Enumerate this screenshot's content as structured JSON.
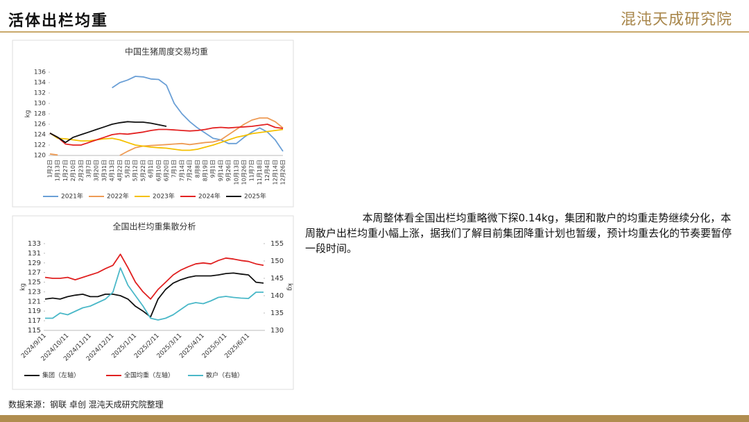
{
  "header": {
    "title": "活体出栏均重",
    "logo": "混沌天成研究院"
  },
  "body": {
    "text": "本周整体看全国出栏均重略微下探0.14kg，集团和散户的均重走势继续分化，本周散户出栏均重小幅上涨，据我们了解目前集团降重计划也暂缓，预计均重去化的节奏要暂停一段时间。"
  },
  "source": "数据来源：钢联 卓创 混沌天成研究院整理",
  "chart_data": [
    {
      "type": "line",
      "title": "中国生猪周度交易均重",
      "y_label": "kg",
      "categories": [
        "1月2日",
        "1月13日",
        "1月27日",
        "2月10日",
        "2月23日",
        "3月7日",
        "3月20日",
        "3月31日",
        "4月13日",
        "4月22日",
        "5月2日",
        "5月12日",
        "5月22日",
        "6月1日",
        "6月10日",
        "6月20日",
        "7月1日",
        "7月14日",
        "7月24日",
        "8月8日",
        "8月19日",
        "9月1日",
        "9月14日",
        "9月26日",
        "10月13日",
        "10月26日",
        "11月7日",
        "11月18日",
        "12月4日",
        "12月14日",
        "12月26日"
      ],
      "ylim": [
        120,
        136
      ],
      "yticks": [
        120,
        122,
        124,
        126,
        128,
        130,
        132,
        134,
        136
      ],
      "grid": false,
      "series": [
        {
          "name": "2021年",
          "color": "#6a9fd6",
          "values": [
            null,
            null,
            null,
            null,
            null,
            null,
            null,
            null,
            133,
            134,
            134.5,
            135.2,
            135.1,
            134.7,
            134.6,
            133.5,
            130,
            128,
            126.5,
            125.3,
            124.3,
            123.3,
            123,
            122.3,
            122.3,
            123.5,
            124.5,
            125.3,
            124.5,
            123,
            120.8
          ]
        },
        {
          "name": "2022年",
          "color": "#ee9b55",
          "values": [
            120.3,
            120.1,
            null,
            null,
            null,
            null,
            null,
            null,
            null,
            120,
            120.8,
            121.5,
            121.8,
            121.9,
            122,
            122.1,
            122.2,
            122.3,
            122.1,
            122.3,
            122.5,
            122.6,
            123,
            124,
            125,
            126,
            126.8,
            127.2,
            127.2,
            126.5,
            125.3
          ]
        },
        {
          "name": "2023年",
          "color": "#f5c000",
          "values": [
            124.3,
            123.3,
            123.2,
            123,
            122.8,
            122.8,
            123,
            123.2,
            123.3,
            123,
            122.5,
            122,
            121.8,
            121.6,
            121.5,
            121.4,
            121.2,
            121,
            121,
            121.2,
            121.6,
            122,
            122.5,
            123,
            123.5,
            123.8,
            124.2,
            124.4,
            124.6,
            124.8,
            125
          ]
        },
        {
          "name": "2024年",
          "color": "#e32222",
          "values": [
            124.3,
            123.5,
            122.2,
            122,
            122,
            122.5,
            123,
            123.5,
            124,
            124.2,
            124.1,
            124.3,
            124.5,
            124.8,
            125,
            125,
            124.9,
            124.8,
            124.7,
            124.8,
            125,
            125.3,
            125.4,
            125.3,
            125.4,
            125.5,
            125.6,
            125.8,
            126,
            125.4,
            125.2
          ]
        },
        {
          "name": "2025年",
          "color": "#111111",
          "values": [
            124.3,
            123.5,
            122.5,
            123.5,
            124,
            124.5,
            125,
            125.5,
            126,
            126.3,
            126.5,
            126.4,
            126.4,
            126.2,
            125.9,
            125.6,
            null,
            null,
            null,
            null,
            null,
            null,
            null,
            null,
            null,
            null,
            null,
            null,
            null,
            null,
            null
          ]
        }
      ]
    },
    {
      "type": "line",
      "title": "全国出栏均重集散分析",
      "y_label": "kg",
      "y2_label": "kg",
      "categories": [
        "2024/9/11",
        null,
        null,
        "2024/10/11",
        null,
        null,
        "2024/11/11",
        null,
        null,
        "2024/12/11",
        null,
        null,
        "2025/1/11",
        null,
        null,
        "2025/2/11",
        null,
        null,
        "2025/3/11",
        null,
        null,
        "2025/4/11",
        null,
        null,
        "2025/5/11",
        null,
        null,
        "2025/6/11",
        null,
        null
      ],
      "ylim": [
        115,
        133
      ],
      "yticks": [
        115,
        117,
        119,
        121,
        123,
        125,
        127,
        129,
        131,
        133
      ],
      "y2lim": [
        130,
        155
      ],
      "y2ticks": [
        130,
        135,
        140,
        145,
        150,
        155
      ],
      "grid": false,
      "series": [
        {
          "name": "集团（左轴）",
          "color": "#111111",
          "values": [
            121.5,
            121.7,
            121.5,
            122,
            122.3,
            122.5,
            122,
            122,
            122.5,
            122.5,
            122.2,
            121.5,
            120,
            119,
            117.8,
            121.5,
            123.5,
            124.8,
            125.5,
            126,
            126.3,
            126.3,
            126.3,
            126.5,
            126.8,
            126.9,
            126.7,
            126.5,
            125,
            124.8
          ]
        },
        {
          "name": "全国均重（左轴）",
          "color": "#e02020",
          "values": [
            126,
            125.8,
            125.8,
            126,
            125.5,
            126,
            126.5,
            127,
            127.8,
            128.5,
            130.8,
            128,
            125,
            123,
            121.5,
            123.5,
            125,
            126.5,
            127.5,
            128.2,
            128.8,
            129,
            128.8,
            129.5,
            130,
            129.8,
            129.5,
            129.3,
            128.8,
            128.5
          ]
        },
        {
          "name": "散户（右轴）",
          "color": "#4ab8c8",
          "axis": "y2",
          "values": [
            133.5,
            133.5,
            135,
            134.5,
            135.5,
            136.5,
            137,
            138,
            139,
            141,
            148,
            143,
            140,
            137,
            133.5,
            133,
            133.5,
            134.5,
            136,
            137.5,
            138,
            137.7,
            138.5,
            139.5,
            139.8,
            139.5,
            139.3,
            139.2,
            141,
            141
          ]
        }
      ]
    }
  ]
}
